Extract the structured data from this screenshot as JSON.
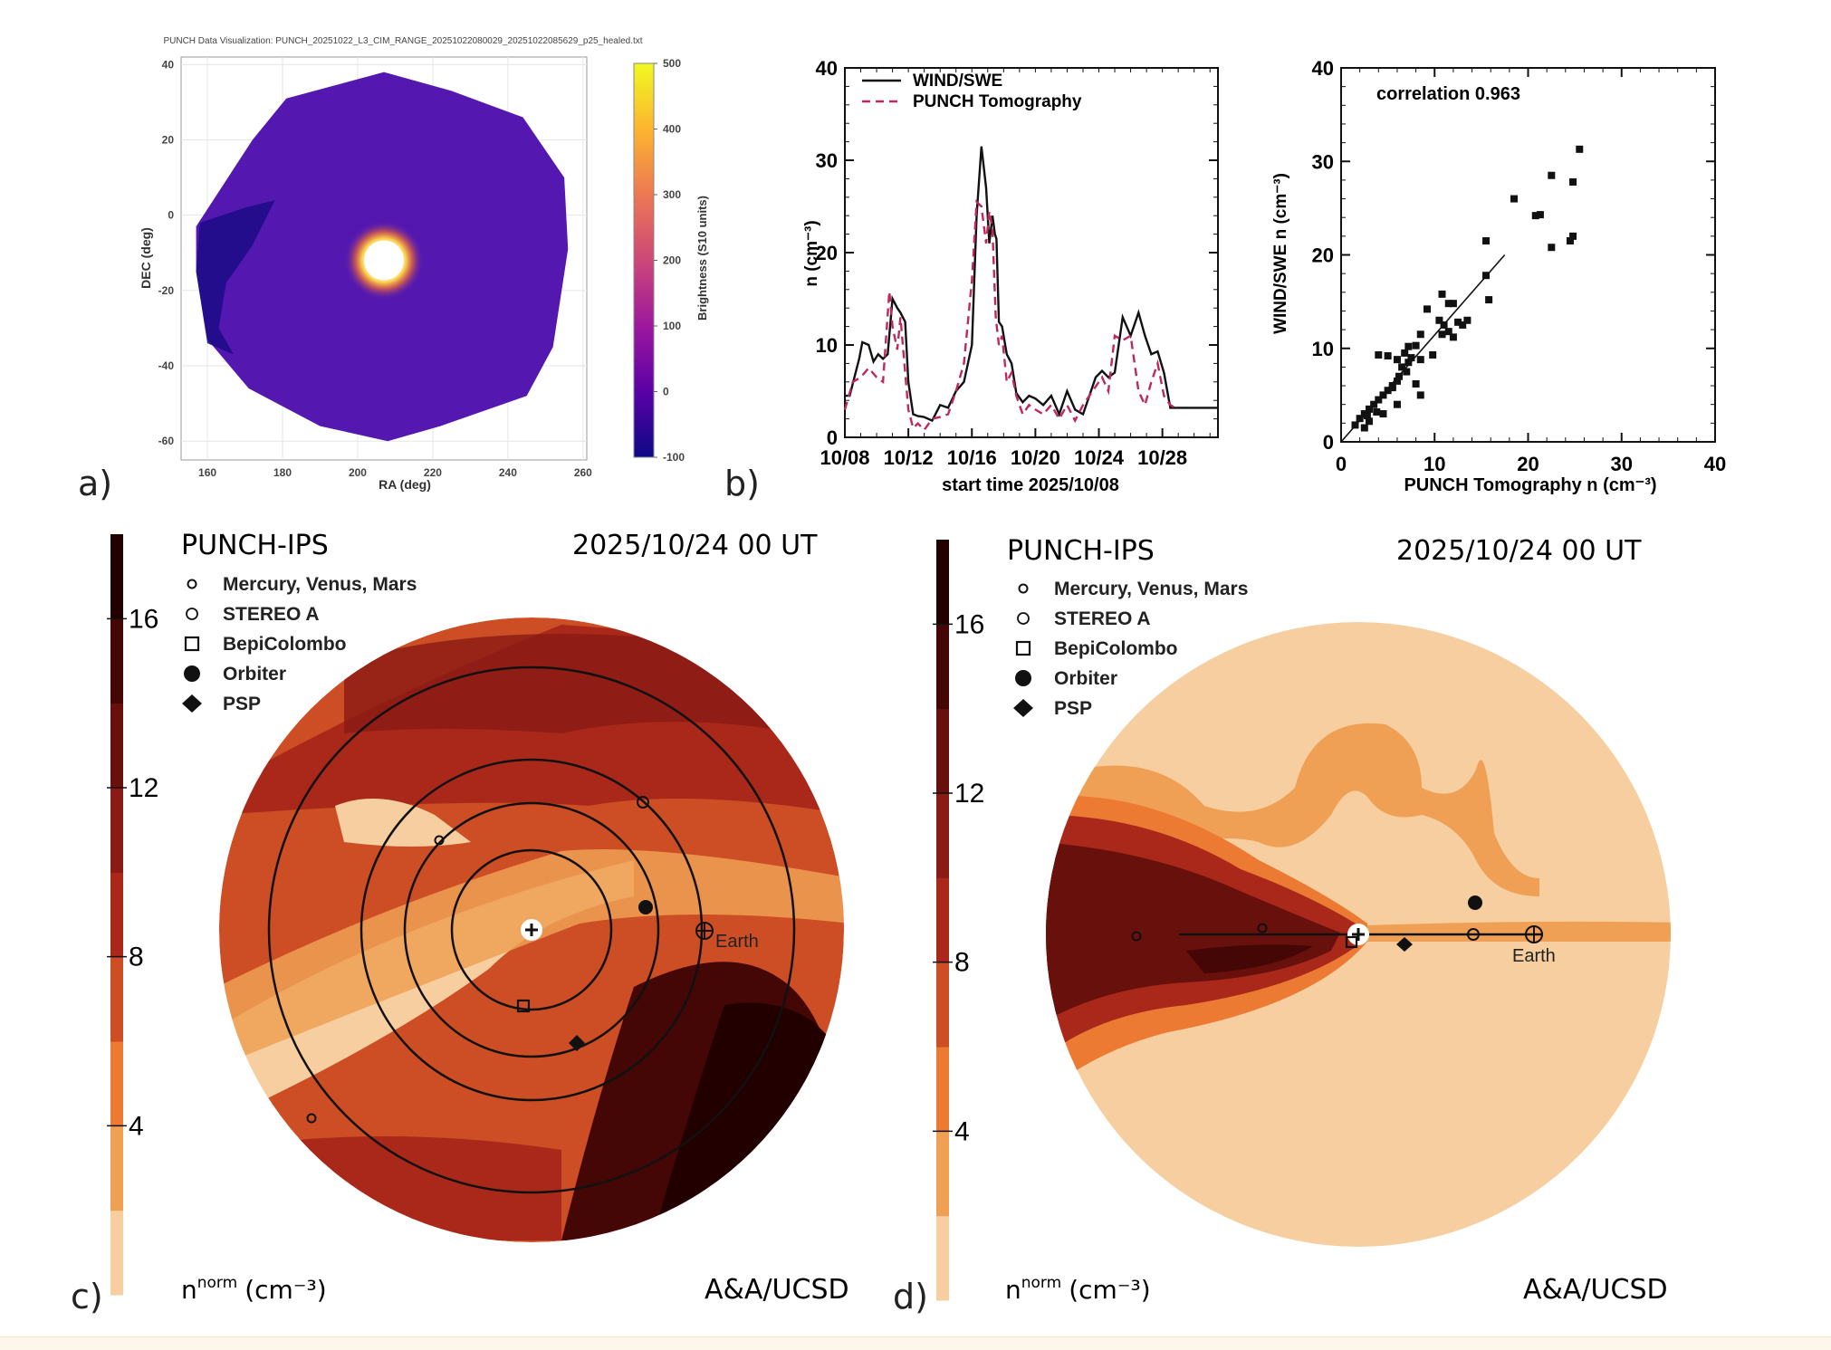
{
  "panel_labels": {
    "a": "a)",
    "b": "b)",
    "c": "c)",
    "d": "d)"
  },
  "chart_data": [
    {
      "id": "panel-a",
      "type": "heatmap",
      "title": "PUNCH Data Visualization: PUNCH_20251022_L3_CIM_RANGE_20251022080029_20251022085629_p25_healed.txt",
      "xlabel": "RA (deg)",
      "ylabel": "DEC (deg)",
      "xlim": [
        153,
        261
      ],
      "ylim": [
        -65,
        42
      ],
      "xticks": [
        160,
        180,
        200,
        220,
        240,
        260
      ],
      "yticks": [
        40,
        20,
        0,
        -20,
        -40,
        -60
      ],
      "grid": true,
      "colorbar": {
        "label": "Brightness (S10 units)",
        "range": [
          -100,
          500
        ],
        "ticks": [
          500,
          400,
          300,
          200,
          100,
          0,
          -100
        ],
        "colormap": "plasma",
        "colors": [
          "#0d0887",
          "#5c01a6",
          "#9c179e",
          "#cc4778",
          "#ed7953",
          "#fdb42f",
          "#f0f921"
        ]
      },
      "features": {
        "background_color": "#5418b0",
        "saturated_center_ra": 207,
        "saturated_center_dec": -12,
        "bright_ring_color": "#fca636",
        "dark_patch_color": "#1e0c8a"
      }
    },
    {
      "id": "panel-b-left",
      "type": "line",
      "xlabel": "start time 2025/10/08",
      "ylabel": "n (cm⁻³)",
      "xlim": [
        0,
        23.5
      ],
      "ylim": [
        0,
        40
      ],
      "xticks": [
        {
          "value": 0,
          "label": "10/08"
        },
        {
          "value": 4,
          "label": "10/12"
        },
        {
          "value": 8,
          "label": "10/16"
        },
        {
          "value": 12,
          "label": "10/20"
        },
        {
          "value": 16,
          "label": "10/24"
        },
        {
          "value": 20,
          "label": "10/28"
        }
      ],
      "yticks": [
        0,
        10,
        20,
        30,
        40
      ],
      "legend_position": "top-left",
      "series": [
        {
          "name": "WIND/SWE",
          "color": "#111111",
          "style": "solid",
          "x": [
            0,
            0.3,
            0.9,
            1.1,
            1.5,
            1.8,
            2.1,
            2.4,
            2.7,
            3.0,
            3.3,
            3.5,
            3.8,
            4.0,
            4.3,
            4.6,
            5.0,
            5.5,
            6.0,
            6.5,
            7.0,
            7.5,
            8.0,
            8.3,
            8.6,
            8.9,
            9.1,
            9.3,
            9.45,
            9.55,
            9.7,
            9.9,
            10.2,
            10.5,
            10.8,
            11.2,
            11.6,
            12.0,
            12.5,
            13.0,
            13.5,
            14.0,
            14.5,
            15.0,
            15.4,
            15.8,
            16.2,
            16.6,
            17.0,
            17.5,
            18.0,
            18.5,
            18.9,
            19.3,
            19.7,
            20.1,
            20.5,
            21.0,
            21.5,
            22.0,
            22.5,
            23.0,
            23.5
          ],
          "y": [
            4.5,
            4.5,
            8.5,
            10.3,
            10.0,
            8.2,
            9.0,
            8.5,
            9.0,
            15.0,
            14.0,
            13.5,
            12.5,
            6.0,
            2.5,
            2.3,
            2.2,
            1.8,
            3.5,
            3.2,
            5.0,
            6.0,
            10.0,
            24.0,
            31.5,
            27.0,
            21.0,
            24.0,
            22.0,
            21.5,
            12.5,
            12.0,
            9.0,
            8.0,
            4.8,
            3.8,
            4.5,
            4.2,
            3.5,
            4.5,
            2.5,
            5.0,
            3.0,
            2.5,
            4.5,
            6.5,
            7.2,
            6.5,
            7.0,
            13.0,
            11.0,
            13.5,
            11.0,
            9.0,
            9.3,
            7.0,
            3.2,
            3.2,
            3.2,
            3.2,
            3.2,
            3.2,
            3.2
          ]
        },
        {
          "name": "PUNCH Tomography",
          "color": "#c0285a",
          "style": "dashed",
          "x": [
            0,
            0.5,
            1.0,
            1.5,
            2.0,
            2.4,
            2.8,
            3.0,
            3.3,
            3.5,
            3.8,
            4.0,
            4.3,
            4.6,
            5.0,
            5.5,
            6.0,
            6.5,
            7.0,
            7.5,
            8.0,
            8.3,
            8.6,
            8.9,
            9.1,
            9.3,
            9.5,
            9.7,
            9.9,
            10.2,
            10.5,
            10.8,
            11.2,
            11.6,
            12.0,
            12.5,
            13.0,
            13.5,
            14.0,
            14.5,
            15.0,
            15.4,
            15.8,
            16.2,
            16.6,
            17.0,
            17.5,
            18.0,
            18.5,
            18.9,
            19.3,
            19.7,
            20.1,
            20.5,
            21.0
          ],
          "y": [
            3.0,
            6.0,
            6.5,
            7.5,
            6.5,
            6.0,
            15.8,
            12.0,
            9.5,
            13.0,
            7.0,
            3.0,
            1.0,
            1.5,
            0.8,
            2.0,
            2.2,
            2.5,
            5.0,
            8.0,
            17.0,
            25.5,
            25.0,
            21.0,
            24.5,
            22.5,
            13.0,
            10.0,
            11.0,
            6.0,
            7.0,
            4.5,
            2.5,
            3.5,
            3.0,
            2.5,
            3.5,
            2.0,
            3.5,
            1.8,
            3.5,
            4.5,
            5.5,
            6.5,
            5.0,
            11.0,
            10.5,
            11.0,
            5.0,
            3.5,
            6.0,
            8.0,
            4.5,
            3.5,
            3.0
          ]
        }
      ]
    },
    {
      "id": "panel-b-right",
      "type": "scatter",
      "xlabel": "PUNCH Tomography n (cm⁻³)",
      "ylabel": "WIND/SWE n (cm⁻³)",
      "xlim": [
        0,
        40
      ],
      "ylim": [
        0,
        40
      ],
      "xticks": [
        0,
        10,
        20,
        30,
        40
      ],
      "yticks": [
        0,
        10,
        20,
        30,
        40
      ],
      "annotation": "correlation 0.963",
      "fit_line": {
        "x": [
          0,
          17.5
        ],
        "y": [
          0,
          20
        ]
      },
      "points": [
        [
          25.5,
          31.3
        ],
        [
          22.5,
          28.5
        ],
        [
          24.8,
          27.8
        ],
        [
          18.5,
          26.0
        ],
        [
          20.8,
          24.2
        ],
        [
          21.3,
          24.3
        ],
        [
          24.8,
          22.0
        ],
        [
          24.5,
          21.5
        ],
        [
          22.5,
          20.8
        ],
        [
          15.5,
          21.5
        ],
        [
          15.5,
          17.8
        ],
        [
          15.8,
          15.2
        ],
        [
          10.8,
          15.8
        ],
        [
          11.5,
          14.8
        ],
        [
          12.0,
          14.8
        ],
        [
          9.2,
          14.2
        ],
        [
          13.5,
          13.0
        ],
        [
          13.0,
          12.5
        ],
        [
          10.5,
          13.0
        ],
        [
          11.0,
          12.5
        ],
        [
          11.5,
          11.8
        ],
        [
          12.0,
          11.2
        ],
        [
          10.8,
          11.5
        ],
        [
          12.5,
          12.8
        ],
        [
          8.5,
          11.5
        ],
        [
          9.8,
          9.3
        ],
        [
          8.0,
          10.3
        ],
        [
          7.2,
          10.2
        ],
        [
          6.8,
          9.5
        ],
        [
          7.5,
          9.0
        ],
        [
          4.0,
          9.3
        ],
        [
          5.0,
          9.2
        ],
        [
          6.0,
          8.8
        ],
        [
          7.2,
          8.5
        ],
        [
          8.5,
          8.8
        ],
        [
          6.5,
          8.0
        ],
        [
          7.0,
          7.5
        ],
        [
          8.0,
          6.2
        ],
        [
          8.5,
          5.0
        ],
        [
          6.0,
          6.5
        ],
        [
          5.5,
          6.0
        ],
        [
          5.0,
          5.5
        ],
        [
          4.5,
          5.0
        ],
        [
          6.0,
          4.0
        ],
        [
          4.0,
          4.5
        ],
        [
          3.5,
          4.0
        ],
        [
          3.0,
          3.5
        ],
        [
          4.5,
          3.0
        ],
        [
          2.5,
          3.0
        ],
        [
          2.0,
          2.5
        ],
        [
          3.0,
          2.2
        ],
        [
          1.5,
          1.8
        ],
        [
          2.5,
          1.5
        ],
        [
          5.5,
          5.8
        ],
        [
          6.2,
          7.0
        ],
        [
          3.8,
          3.2
        ],
        [
          2.8,
          2.8
        ]
      ]
    },
    {
      "id": "panel-c",
      "type": "heatmap",
      "title": "PUNCH-IPS",
      "timestamp": "2025/10/24 00 UT",
      "credit": "A&A/UCSD",
      "colorbar_label_base": "n",
      "colorbar_label_sup": "norm",
      "colorbar_label_unit": "(cm⁻³)",
      "colorbar_ticks": [
        16,
        12,
        8,
        4
      ],
      "colorbar_levels": [
        0,
        2,
        4,
        6,
        8,
        10,
        12,
        14,
        16,
        18
      ],
      "colorbar_colors": [
        "#f6cea0",
        "#efa055",
        "#ec7a33",
        "#cd4e24",
        "#a9281a",
        "#8a1a14",
        "#68100c",
        "#440706",
        "#220000"
      ],
      "view": "ecliptic top-down",
      "legend": [
        {
          "symbol": "small-circle",
          "label": "Mercury, Venus, Mars"
        },
        {
          "symbol": "open-circle",
          "label": "STEREO A"
        },
        {
          "symbol": "open-square",
          "label": "BepiColombo"
        },
        {
          "symbol": "filled-circle",
          "label": "Orbiter"
        },
        {
          "symbol": "filled-diamond",
          "label": "PSP"
        }
      ],
      "earth_label": "Earth"
    },
    {
      "id": "panel-d",
      "type": "heatmap",
      "title": "PUNCH-IPS",
      "timestamp": "2025/10/24 00 UT",
      "credit": "A&A/UCSD",
      "colorbar_label_base": "n",
      "colorbar_label_sup": "norm",
      "colorbar_label_unit": "(cm⁻³)",
      "colorbar_ticks": [
        16,
        12,
        8,
        4
      ],
      "colorbar_levels": [
        0,
        2,
        4,
        6,
        8,
        10,
        12,
        14,
        16,
        18
      ],
      "colorbar_colors": [
        "#f6cea0",
        "#efa055",
        "#ec7a33",
        "#cd4e24",
        "#a9281a",
        "#8a1a14",
        "#68100c",
        "#440706",
        "#220000"
      ],
      "view": "meridional side view",
      "legend": [
        {
          "symbol": "small-circle",
          "label": "Mercury, Venus, Mars"
        },
        {
          "symbol": "open-circle",
          "label": "STEREO A"
        },
        {
          "symbol": "open-square",
          "label": "BepiColombo"
        },
        {
          "symbol": "filled-circle",
          "label": "Orbiter"
        },
        {
          "symbol": "filled-diamond",
          "label": "PSP"
        }
      ],
      "earth_label": "Earth"
    }
  ]
}
